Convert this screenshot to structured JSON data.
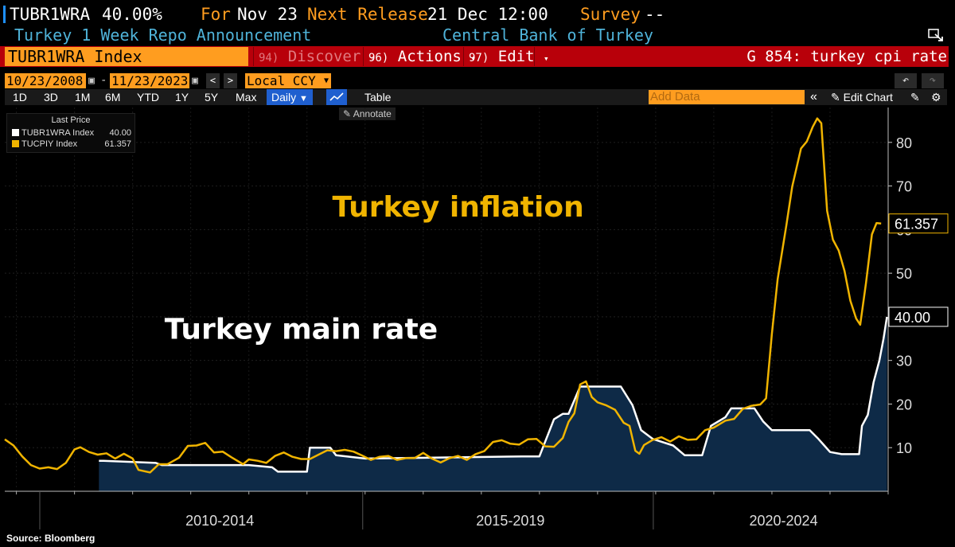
{
  "header": {
    "ticker": "TUBR1WRA",
    "value": "40.00%",
    "for_label": "For",
    "for_date": "Nov 23",
    "next_release_label": "Next Release",
    "next_release": "21 Dec 12:00",
    "survey_label": "Survey",
    "survey_value": "--",
    "description": "Turkey 1 Week Repo Announcement",
    "source_org": "Central Bank of Turkey"
  },
  "menubar": {
    "index_label": "TUBR1WRA Index",
    "discover_num": "94)",
    "discover": "Discover",
    "actions_num": "96)",
    "actions": "Actions",
    "edit_num": "97)",
    "edit": "Edit",
    "chart_title": "G 854: turkey cpi rate"
  },
  "daterange": {
    "start": "10/23/2008",
    "end": "11/23/2023",
    "currency": "Local CCY"
  },
  "toolbar": {
    "periods": [
      "1D",
      "3D",
      "1M",
      "6M",
      "YTD",
      "1Y",
      "5Y",
      "Max"
    ],
    "frequency": "Daily",
    "table": "Table",
    "add_data_placeholder": "Add Data",
    "edit_chart": "Edit Chart",
    "annotate": "Annotate"
  },
  "legend": {
    "header": "Last Price",
    "items": [
      {
        "name": "TUBR1WRA Index",
        "value": "40.00",
        "color": "#ffffff"
      },
      {
        "name": "TUCPIY Index",
        "value": "61.357",
        "color": "#f0b400"
      }
    ]
  },
  "icons": {
    "ticker_mark": "ticker-mark-icon",
    "calendar": "calendar-icon",
    "undo": "undo-icon",
    "redo": "redo-icon",
    "settings": "gear-icon"
  },
  "source_note": "Source: Bloomberg",
  "chart_data": {
    "type": "line",
    "annotations": [
      {
        "text": "Turkey inflation",
        "color": "#f0b400",
        "anchor_date": 2016.6,
        "anchor_value": 63
      },
      {
        "text": "Turkey main rate",
        "color": "#ffffff",
        "anchor_date": 2013.9,
        "anchor_value": 35
      }
    ],
    "x_range": [
      2008.8,
      2024.0
    ],
    "y_range": [
      0,
      88
    ],
    "y_ticks": [
      10,
      20,
      30,
      40,
      50,
      60,
      70,
      80
    ],
    "x_period_labels": [
      {
        "label": "2010-2014",
        "center": 2012.5
      },
      {
        "label": "2015-2019",
        "center": 2017.5
      },
      {
        "label": "2020-2024",
        "center": 2022.2
      }
    ],
    "x_dividers": [
      2015.0,
      2020.0
    ],
    "grid": true,
    "series": [
      {
        "name": "TUBR1WRA Index",
        "color": "#ffffff",
        "area_fill": "#0e2a47",
        "last_value": "40.00",
        "points": [
          [
            2010.42,
            7
          ],
          [
            2010.5,
            7
          ],
          [
            2011.4,
            6.5
          ],
          [
            2011.5,
            6
          ],
          [
            2013.0,
            6
          ],
          [
            2013.4,
            5.5
          ],
          [
            2013.5,
            4.5
          ],
          [
            2014.0,
            4.5
          ],
          [
            2014.05,
            10
          ],
          [
            2014.4,
            10
          ],
          [
            2014.5,
            8.25
          ],
          [
            2015.0,
            7.5
          ],
          [
            2017.7,
            8
          ],
          [
            2018.0,
            8
          ],
          [
            2018.25,
            16.5
          ],
          [
            2018.4,
            17.75
          ],
          [
            2018.5,
            17.75
          ],
          [
            2018.7,
            24
          ],
          [
            2019.4,
            24
          ],
          [
            2019.6,
            19.75
          ],
          [
            2019.75,
            14
          ],
          [
            2019.95,
            12
          ],
          [
            2020.3,
            10.5
          ],
          [
            2020.5,
            8.25
          ],
          [
            2020.8,
            8.25
          ],
          [
            2020.95,
            15
          ],
          [
            2021.2,
            17
          ],
          [
            2021.3,
            19
          ],
          [
            2021.7,
            19
          ],
          [
            2021.85,
            16
          ],
          [
            2022.0,
            14
          ],
          [
            2022.65,
            14
          ],
          [
            2022.8,
            12
          ],
          [
            2022.9,
            10.5
          ],
          [
            2023.0,
            9
          ],
          [
            2023.2,
            8.5
          ],
          [
            2023.5,
            8.5
          ],
          [
            2023.55,
            15
          ],
          [
            2023.65,
            17.5
          ],
          [
            2023.75,
            25
          ],
          [
            2023.85,
            30
          ],
          [
            2023.92,
            35
          ],
          [
            2023.98,
            40
          ]
        ]
      },
      {
        "name": "TUCPIY Index",
        "color": "#f0b400",
        "last_value": "61.357",
        "points": [
          [
            2008.8,
            11.9
          ],
          [
            2008.95,
            10.5
          ],
          [
            2009.1,
            8
          ],
          [
            2009.25,
            6
          ],
          [
            2009.4,
            5.2
          ],
          [
            2009.55,
            5.5
          ],
          [
            2009.7,
            5.1
          ],
          [
            2009.85,
            6.5
          ],
          [
            2010.0,
            9.6
          ],
          [
            2010.1,
            10.1
          ],
          [
            2010.25,
            9
          ],
          [
            2010.4,
            8.4
          ],
          [
            2010.55,
            8.7
          ],
          [
            2010.7,
            7.5
          ],
          [
            2010.85,
            8.6
          ],
          [
            2011.0,
            7.5
          ],
          [
            2011.1,
            4.9
          ],
          [
            2011.3,
            4.3
          ],
          [
            2011.45,
            6.2
          ],
          [
            2011.6,
            6.2
          ],
          [
            2011.8,
            7.7
          ],
          [
            2011.95,
            10.4
          ],
          [
            2012.1,
            10.5
          ],
          [
            2012.25,
            11.1
          ],
          [
            2012.4,
            8.9
          ],
          [
            2012.55,
            9.1
          ],
          [
            2012.7,
            7.8
          ],
          [
            2012.9,
            6.2
          ],
          [
            2013.0,
            7.3
          ],
          [
            2013.15,
            7
          ],
          [
            2013.3,
            6.5
          ],
          [
            2013.45,
            8.1
          ],
          [
            2013.6,
            8.9
          ],
          [
            2013.75,
            7.9
          ],
          [
            2013.9,
            7.4
          ],
          [
            2014.05,
            7.4
          ],
          [
            2014.2,
            8.4
          ],
          [
            2014.35,
            9.4
          ],
          [
            2014.5,
            9.2
          ],
          [
            2014.65,
            9.5
          ],
          [
            2014.8,
            9.1
          ],
          [
            2014.95,
            8.2
          ],
          [
            2015.1,
            7.2
          ],
          [
            2015.25,
            7.9
          ],
          [
            2015.4,
            8.1
          ],
          [
            2015.55,
            7.2
          ],
          [
            2015.7,
            7.6
          ],
          [
            2015.85,
            7.6
          ],
          [
            2016.0,
            8.8
          ],
          [
            2016.15,
            7.5
          ],
          [
            2016.3,
            6.6
          ],
          [
            2016.45,
            7.6
          ],
          [
            2016.6,
            8.1
          ],
          [
            2016.75,
            7.2
          ],
          [
            2016.9,
            8.5
          ],
          [
            2017.05,
            9.2
          ],
          [
            2017.2,
            11.3
          ],
          [
            2017.35,
            11.7
          ],
          [
            2017.5,
            10.9
          ],
          [
            2017.65,
            10.7
          ],
          [
            2017.8,
            11.9
          ],
          [
            2017.95,
            12
          ],
          [
            2018.1,
            10.3
          ],
          [
            2018.25,
            10.2
          ],
          [
            2018.4,
            12.2
          ],
          [
            2018.5,
            15.9
          ],
          [
            2018.6,
            17.9
          ],
          [
            2018.7,
            24.5
          ],
          [
            2018.8,
            25.2
          ],
          [
            2018.9,
            21.6
          ],
          [
            2019.0,
            20.4
          ],
          [
            2019.15,
            19.7
          ],
          [
            2019.3,
            18.7
          ],
          [
            2019.45,
            15.7
          ],
          [
            2019.55,
            15
          ],
          [
            2019.65,
            9.3
          ],
          [
            2019.72,
            8.6
          ],
          [
            2019.8,
            10.6
          ],
          [
            2019.95,
            11.8
          ],
          [
            2020.1,
            12.4
          ],
          [
            2020.25,
            11.4
          ],
          [
            2020.4,
            12.6
          ],
          [
            2020.55,
            11.8
          ],
          [
            2020.7,
            11.9
          ],
          [
            2020.85,
            14
          ],
          [
            2021.0,
            14.6
          ],
          [
            2021.2,
            16.2
          ],
          [
            2021.35,
            16.6
          ],
          [
            2021.5,
            18.9
          ],
          [
            2021.65,
            19.6
          ],
          [
            2021.8,
            19.9
          ],
          [
            2021.9,
            21.3
          ],
          [
            2022.0,
            36.1
          ],
          [
            2022.1,
            48.7
          ],
          [
            2022.25,
            61.1
          ],
          [
            2022.35,
            69.9
          ],
          [
            2022.5,
            78.6
          ],
          [
            2022.6,
            80.2
          ],
          [
            2022.7,
            83.5
          ],
          [
            2022.78,
            85.5
          ],
          [
            2022.85,
            84.4
          ],
          [
            2022.95,
            64.3
          ],
          [
            2023.05,
            57.7
          ],
          [
            2023.15,
            55.2
          ],
          [
            2023.25,
            50.5
          ],
          [
            2023.35,
            43.7
          ],
          [
            2023.45,
            39.6
          ],
          [
            2023.52,
            38.2
          ],
          [
            2023.62,
            47.8
          ],
          [
            2023.72,
            58.9
          ],
          [
            2023.8,
            61.5
          ],
          [
            2023.88,
            61.4
          ]
        ]
      }
    ]
  }
}
